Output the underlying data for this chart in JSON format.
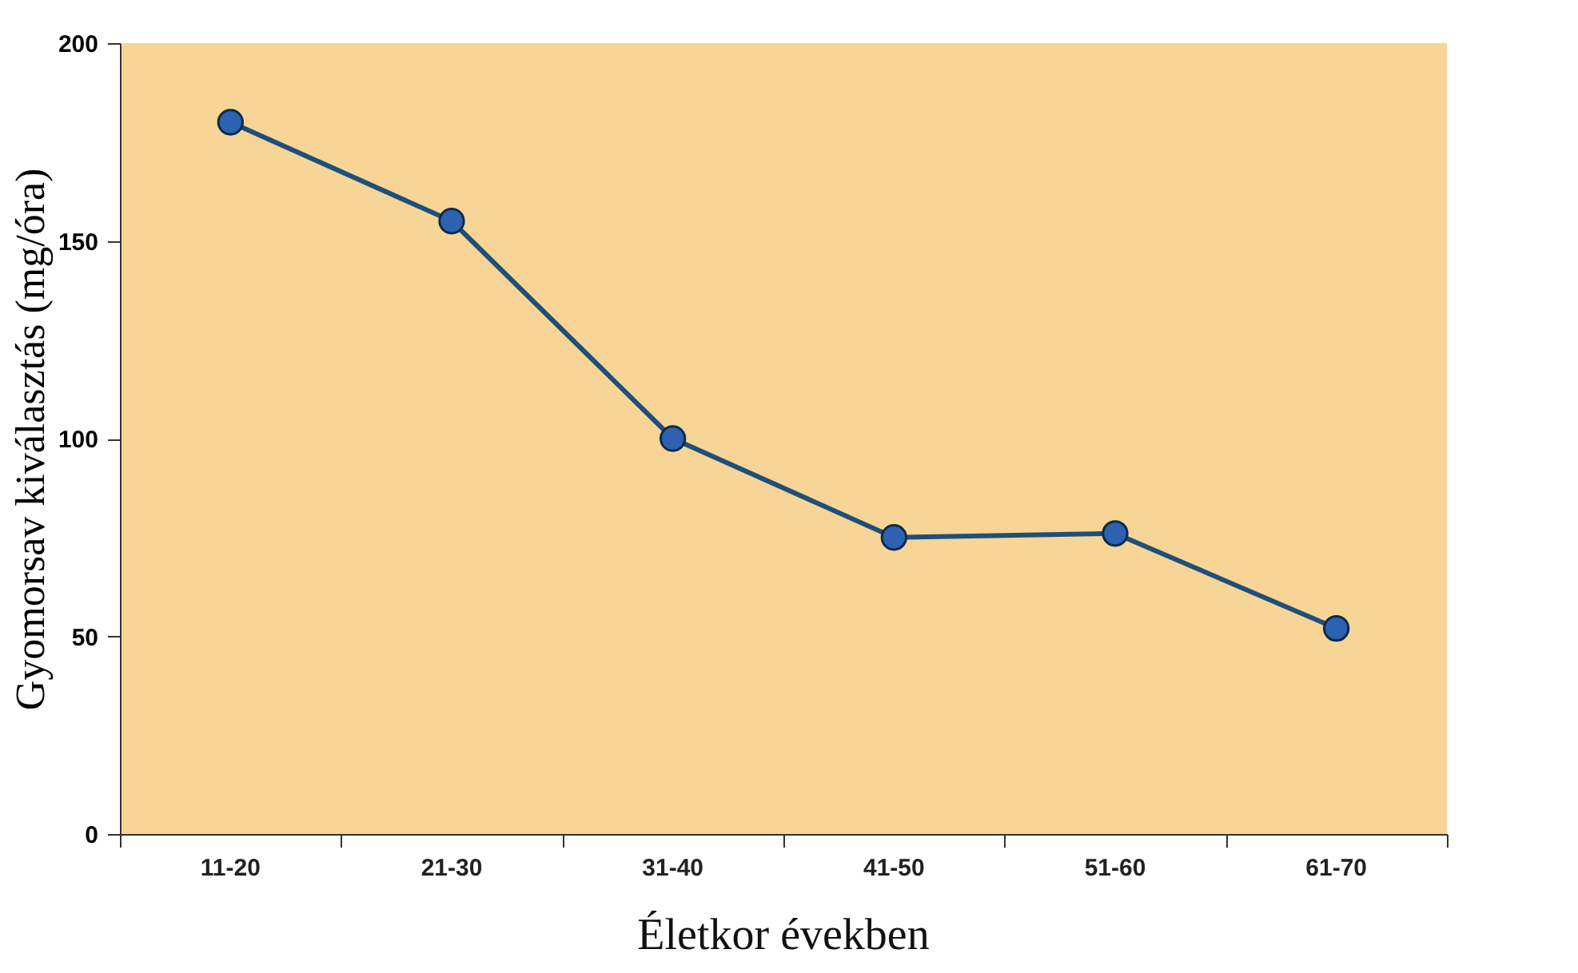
{
  "chart_data": {
    "type": "line",
    "xlabel": "Életkor években",
    "ylabel": "Gyomorsav kiválasztás (mg/óra)",
    "categories": [
      "11-20",
      "21-30",
      "31-40",
      "41-50",
      "51-60",
      "61-70"
    ],
    "series": [
      {
        "color": "#1f4e79",
        "values": [
          180,
          155,
          100,
          75,
          76,
          52
        ]
      }
    ],
    "ylim": [
      0,
      200
    ],
    "yticks": [
      0,
      50,
      100,
      150,
      200
    ],
    "grid": false,
    "legend": false,
    "marker": "circle",
    "line_style": "solid"
  }
}
